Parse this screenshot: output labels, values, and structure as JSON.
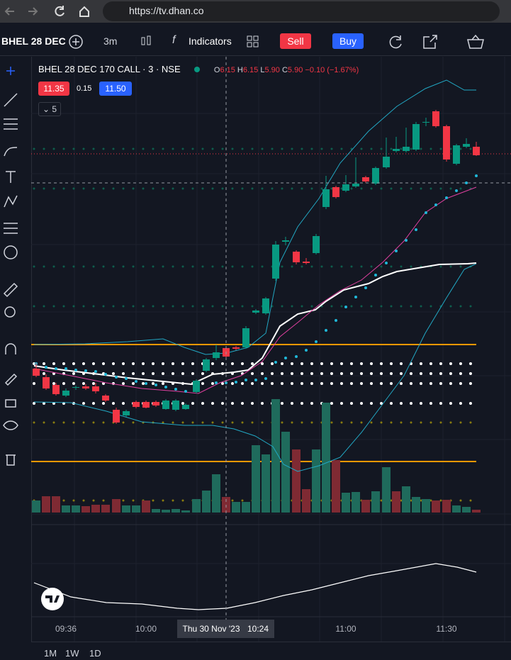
{
  "browser": {
    "url": "https://tv.dhan.co"
  },
  "toolbar": {
    "symbol": "BHEL 28 DEC",
    "interval": "3m",
    "indicators": "Indicators",
    "sell": "Sell",
    "buy": "Buy"
  },
  "legend": {
    "title": "BHEL 28 DEC 170 CALL · 3 · NSE",
    "o_label": "O",
    "o": "6.15",
    "h_label": "H",
    "h": "6.15",
    "l_label": "L",
    "l": "5.90",
    "c_label": "C",
    "c": "5.90",
    "change": "−0.10 (−1.67%)",
    "bid": "11.35",
    "spread": "0.15",
    "ask": "11.50",
    "indicator_count": "5"
  },
  "time_axis": {
    "labels": [
      "09:36",
      "10:00",
      "11:00",
      "11:30"
    ],
    "cursor_date": "Thu 30 Nov '23",
    "cursor_time": "10:24"
  },
  "ranges": [
    "1M",
    "1W",
    "1D"
  ]
}
